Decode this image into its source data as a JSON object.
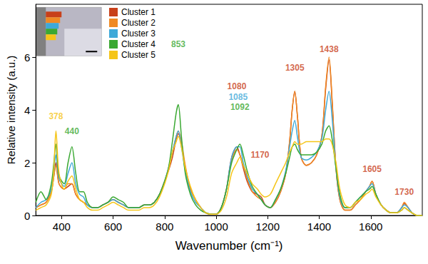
{
  "chart_data": {
    "type": "line",
    "x_label": "Wavenumber (cm⁻¹)",
    "y_label": "Relative intensity (a.u.)",
    "xlim": [
      300,
      1800
    ],
    "xticks": [
      400,
      600,
      800,
      1000,
      1200,
      1400,
      1600
    ],
    "ylim": [
      0,
      8
    ],
    "yticks": [
      0,
      2,
      4,
      6
    ],
    "grid": false,
    "legend": "top-left",
    "x": [
      300,
      320,
      340,
      360,
      370,
      378,
      390,
      410,
      425,
      440,
      455,
      470,
      485,
      500,
      520,
      540,
      560,
      580,
      600,
      620,
      640,
      660,
      680,
      700,
      720,
      740,
      760,
      780,
      800,
      815,
      830,
      845,
      853,
      865,
      880,
      900,
      920,
      940,
      960,
      980,
      1000,
      1020,
      1040,
      1060,
      1080,
      1092,
      1105,
      1120,
      1140,
      1160,
      1175,
      1190,
      1210,
      1230,
      1250,
      1270,
      1285,
      1295,
      1305,
      1315,
      1330,
      1350,
      1370,
      1390,
      1410,
      1425,
      1438,
      1450,
      1465,
      1480,
      1500,
      1520,
      1540,
      1560,
      1580,
      1595,
      1605,
      1620,
      1640,
      1660,
      1680,
      1700,
      1720,
      1730,
      1745,
      1760,
      1780,
      1800
    ],
    "series": [
      {
        "name": "Cluster 1",
        "color": "#c8401a",
        "values": [
          0.3,
          0.4,
          0.5,
          0.9,
          1.5,
          2.0,
          1.2,
          1.0,
          1.1,
          1.2,
          0.8,
          0.6,
          0.5,
          0.4,
          0.3,
          0.3,
          0.4,
          0.5,
          0.6,
          0.5,
          0.4,
          0.3,
          0.3,
          0.3,
          0.4,
          0.4,
          0.5,
          0.8,
          1.3,
          1.7,
          2.2,
          2.9,
          3.1,
          2.7,
          1.8,
          1.0,
          0.6,
          0.3,
          0.1,
          0.05,
          0.05,
          0.3,
          1.0,
          2.2,
          2.6,
          2.3,
          1.8,
          1.3,
          0.9,
          0.8,
          0.7,
          0.4,
          0.3,
          0.5,
          0.9,
          1.6,
          2.8,
          4.0,
          4.7,
          3.8,
          2.2,
          1.9,
          2.0,
          2.3,
          3.0,
          4.8,
          5.9,
          4.3,
          1.8,
          0.6,
          0.2,
          0.2,
          0.4,
          0.6,
          0.9,
          1.1,
          1.3,
          0.8,
          0.4,
          0.2,
          0.1,
          0.1,
          0.3,
          0.45,
          0.3,
          0.1,
          0.0,
          0.0
        ]
      },
      {
        "name": "Cluster 2",
        "color": "#f08a24",
        "values": [
          0.3,
          0.4,
          0.5,
          0.9,
          1.5,
          1.9,
          1.2,
          1.0,
          1.2,
          1.2,
          0.8,
          0.6,
          0.5,
          0.4,
          0.3,
          0.3,
          0.4,
          0.5,
          0.6,
          0.5,
          0.4,
          0.3,
          0.3,
          0.3,
          0.4,
          0.4,
          0.5,
          0.8,
          1.3,
          1.8,
          2.4,
          3.0,
          3.2,
          2.8,
          1.9,
          1.0,
          0.6,
          0.3,
          0.1,
          0.05,
          0.05,
          0.3,
          1.0,
          2.1,
          2.5,
          2.3,
          1.9,
          1.4,
          0.9,
          0.7,
          0.6,
          0.4,
          0.3,
          0.5,
          0.9,
          1.6,
          2.8,
          4.0,
          4.7,
          3.8,
          2.2,
          1.9,
          2.0,
          2.3,
          3.0,
          4.9,
          6.0,
          4.4,
          1.8,
          0.6,
          0.2,
          0.2,
          0.4,
          0.6,
          0.9,
          1.1,
          1.3,
          0.8,
          0.4,
          0.2,
          0.1,
          0.1,
          0.3,
          0.5,
          0.3,
          0.1,
          0.0,
          0.0
        ]
      },
      {
        "name": "Cluster 3",
        "color": "#3ea9d8",
        "values": [
          0.3,
          0.5,
          0.6,
          1.0,
          1.7,
          2.3,
          1.4,
          1.1,
          1.6,
          2.0,
          1.2,
          0.8,
          0.7,
          0.4,
          0.3,
          0.3,
          0.4,
          0.5,
          0.6,
          0.5,
          0.4,
          0.3,
          0.3,
          0.3,
          0.4,
          0.4,
          0.5,
          0.8,
          1.3,
          1.8,
          2.4,
          3.0,
          3.2,
          2.6,
          1.7,
          0.9,
          0.5,
          0.3,
          0.1,
          0.05,
          0.05,
          0.3,
          1.0,
          2.2,
          2.6,
          2.6,
          2.0,
          1.5,
          1.0,
          0.8,
          0.6,
          0.4,
          0.3,
          0.6,
          1.0,
          1.7,
          2.6,
          3.2,
          3.6,
          3.0,
          2.2,
          2.1,
          2.2,
          2.4,
          2.9,
          4.0,
          4.7,
          3.7,
          1.8,
          0.7,
          0.3,
          0.3,
          0.5,
          0.7,
          0.9,
          1.1,
          1.2,
          0.8,
          0.4,
          0.2,
          0.1,
          0.1,
          0.3,
          0.4,
          0.3,
          0.1,
          0.0,
          0.0
        ]
      },
      {
        "name": "Cluster 4",
        "color": "#3aa832",
        "values": [
          0.5,
          0.9,
          0.6,
          1.2,
          2.0,
          2.7,
          1.5,
          1.2,
          2.0,
          2.6,
          1.6,
          0.9,
          0.9,
          0.5,
          0.3,
          0.3,
          0.4,
          0.5,
          0.7,
          0.6,
          0.5,
          0.3,
          0.3,
          0.3,
          0.4,
          0.4,
          0.5,
          0.8,
          1.3,
          1.8,
          2.8,
          3.9,
          4.2,
          3.0,
          1.6,
          0.8,
          0.4,
          0.2,
          0.1,
          0.05,
          0.05,
          0.3,
          1.0,
          2.0,
          2.5,
          2.7,
          2.3,
          1.7,
          1.1,
          0.8,
          0.6,
          0.4,
          0.3,
          0.6,
          1.0,
          1.6,
          2.2,
          2.6,
          2.7,
          2.5,
          2.3,
          2.3,
          2.3,
          2.4,
          2.7,
          3.2,
          3.4,
          2.9,
          1.8,
          0.8,
          0.3,
          0.3,
          0.5,
          0.7,
          0.9,
          1.0,
          1.1,
          0.8,
          0.4,
          0.2,
          0.1,
          0.1,
          0.2,
          0.3,
          0.2,
          0.1,
          0.0,
          0.0
        ]
      },
      {
        "name": "Cluster 5",
        "color": "#f5c518",
        "values": [
          0.2,
          0.3,
          0.4,
          0.8,
          1.8,
          3.2,
          1.6,
          1.0,
          1.3,
          1.5,
          1.0,
          0.6,
          0.5,
          0.3,
          0.2,
          0.2,
          0.3,
          0.4,
          0.5,
          0.4,
          0.3,
          0.2,
          0.2,
          0.2,
          0.3,
          0.3,
          0.4,
          0.7,
          1.2,
          1.7,
          2.4,
          2.8,
          3.0,
          2.6,
          1.8,
          1.1,
          0.6,
          0.3,
          0.1,
          0.05,
          0.05,
          0.2,
          0.7,
          1.6,
          2.0,
          2.2,
          1.9,
          1.6,
          1.2,
          1.0,
          0.8,
          0.7,
          0.8,
          1.2,
          1.6,
          2.0,
          2.4,
          2.6,
          2.8,
          2.7,
          2.7,
          2.8,
          2.8,
          2.8,
          2.8,
          2.9,
          2.9,
          2.7,
          2.0,
          1.0,
          0.4,
          0.3,
          0.5,
          0.6,
          0.8,
          0.9,
          1.0,
          0.7,
          0.4,
          0.2,
          0.1,
          0.1,
          0.2,
          0.3,
          0.2,
          0.1,
          0.0,
          0.0
        ]
      }
    ],
    "annotations": [
      {
        "text": "378",
        "x": 378,
        "y": 3.75,
        "color": "#f5c518"
      },
      {
        "text": "440",
        "x": 440,
        "y": 3.2,
        "color": "#3aa832"
      },
      {
        "text": "853",
        "x": 853,
        "y": 6.5,
        "color": "#3aa832"
      },
      {
        "text": "1080",
        "x": 1080,
        "y": 4.9,
        "color": "#c8401a"
      },
      {
        "text": "1085",
        "x": 1085,
        "y": 4.5,
        "color": "#3ea9d8"
      },
      {
        "text": "1092",
        "x": 1092,
        "y": 4.1,
        "color": "#3aa832"
      },
      {
        "text": "1170",
        "x": 1170,
        "y": 2.3,
        "color": "#c8401a"
      },
      {
        "text": "1305",
        "x": 1305,
        "y": 5.6,
        "color": "#c8401a"
      },
      {
        "text": "1438",
        "x": 1438,
        "y": 6.3,
        "color": "#c8401a"
      },
      {
        "text": "1605",
        "x": 1605,
        "y": 1.75,
        "color": "#c8401a"
      },
      {
        "text": "1730",
        "x": 1730,
        "y": 0.9,
        "color": "#c8401a"
      }
    ]
  }
}
